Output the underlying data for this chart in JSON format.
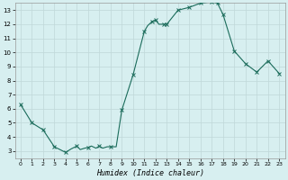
{
  "title": "",
  "xlabel": "Humidex (Indice chaleur)",
  "ylabel": "",
  "background_color": "#d7eff0",
  "grid_color": "#c0d8d8",
  "line_color": "#1a6b5a",
  "marker_color": "#1a6b5a",
  "x_data": [
    0,
    1,
    2,
    3,
    4,
    4.5,
    5,
    5.3,
    5.7,
    6,
    6.3,
    6.7,
    7,
    7.3,
    7.7,
    8,
    8.5,
    9,
    10,
    11,
    11.3,
    11.7,
    12,
    12.3,
    12.7,
    13,
    14,
    15,
    16,
    17,
    17.5,
    18,
    19,
    20,
    21,
    22,
    23
  ],
  "y_data": [
    6.3,
    5.0,
    4.5,
    3.3,
    2.9,
    3.15,
    3.35,
    3.1,
    3.2,
    3.25,
    3.35,
    3.2,
    3.35,
    3.2,
    3.3,
    3.3,
    3.3,
    5.9,
    8.4,
    11.5,
    11.9,
    12.2,
    12.3,
    12.0,
    12.0,
    12.0,
    13.0,
    13.2,
    13.5,
    13.6,
    13.5,
    12.7,
    10.1,
    9.2,
    8.6,
    9.4,
    8.5
  ],
  "xlim": [
    -0.5,
    23.5
  ],
  "ylim": [
    2.5,
    13.5
  ],
  "yticks": [
    3,
    4,
    5,
    6,
    7,
    8,
    9,
    10,
    11,
    12,
    13
  ],
  "xticks": [
    0,
    1,
    2,
    3,
    4,
    5,
    6,
    7,
    8,
    9,
    10,
    11,
    12,
    13,
    14,
    15,
    16,
    17,
    18,
    19,
    20,
    21,
    22,
    23
  ],
  "marker_x": [
    0,
    1,
    2,
    3,
    4,
    5,
    6,
    7,
    8,
    9,
    10,
    11,
    11.7,
    12,
    12.7,
    13,
    14,
    15,
    16,
    17,
    17.5,
    18,
    19,
    20,
    21,
    22,
    23
  ],
  "marker_y": [
    6.3,
    5.0,
    4.5,
    3.3,
    2.9,
    3.35,
    3.25,
    3.35,
    3.3,
    5.9,
    8.4,
    11.5,
    12.2,
    12.3,
    12.0,
    12.0,
    13.0,
    13.2,
    13.5,
    13.6,
    13.5,
    12.7,
    10.1,
    9.2,
    8.6,
    9.4,
    8.5
  ]
}
